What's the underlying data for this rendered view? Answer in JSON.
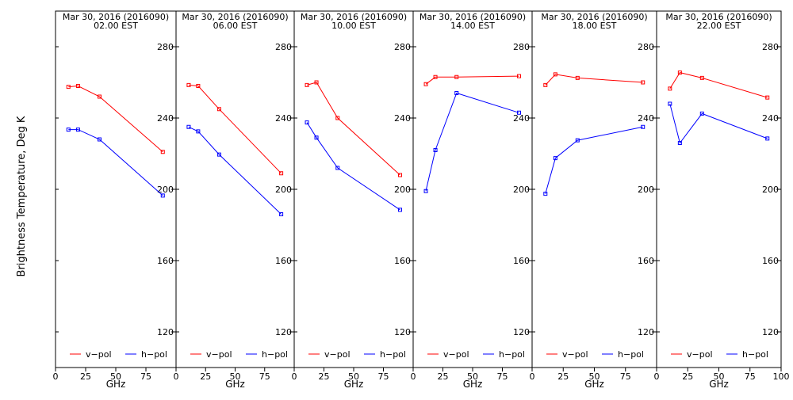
{
  "chart_data": {
    "type": "line",
    "ylabel": "Brightness Temperature, Deg K",
    "xlabel": "GHz",
    "xlim": [
      0,
      100
    ],
    "ylim": [
      100,
      295
    ],
    "x_ticks": [
      0,
      25,
      50,
      75,
      100
    ],
    "y_ticks": [
      120,
      160,
      200,
      240,
      280
    ],
    "legend": [
      {
        "label": "v−pol",
        "color": "#ff0000"
      },
      {
        "label": "h−pol",
        "color": "#0000ff"
      }
    ],
    "legend_position": "bottom",
    "colors": {
      "v_pol": "#ff0000",
      "h_pol": "#0000ff",
      "frame": "#000000"
    },
    "panels": [
      {
        "title_line1": "Mar 30, 2016 (2016090)",
        "title_line2": "02.00 EST",
        "x": [
          10.7,
          18.7,
          36.5,
          89
        ],
        "series": [
          {
            "name": "v−pol",
            "values": [
              257.5,
              258,
              252,
              221
            ]
          },
          {
            "name": "h−pol",
            "values": [
              233.5,
              233.5,
              228,
              196.5
            ]
          }
        ]
      },
      {
        "title_line1": "Mar 30, 2016 (2016090)",
        "title_line2": "06.00 EST",
        "x": [
          10.7,
          18.7,
          36.5,
          89
        ],
        "series": [
          {
            "name": "v−pol",
            "values": [
              258.5,
              258,
              245,
              209
            ]
          },
          {
            "name": "h−pol",
            "values": [
              235,
              232.5,
              219.5,
              186
            ]
          }
        ]
      },
      {
        "title_line1": "Mar 30, 2016 (2016090)",
        "title_line2": "10.00 EST",
        "x": [
          10.7,
          18.7,
          36.5,
          89
        ],
        "series": [
          {
            "name": "v−pol",
            "values": [
              258.5,
              260,
              240,
              208
            ]
          },
          {
            "name": "h−pol",
            "values": [
              237.5,
              229,
              212,
              188.5
            ]
          }
        ]
      },
      {
        "title_line1": "Mar 30, 2016 (2016090)",
        "title_line2": "14.00 EST",
        "x": [
          10.7,
          18.7,
          36.5,
          89
        ],
        "series": [
          {
            "name": "v−pol",
            "values": [
              259,
              263,
              263,
              263.5
            ]
          },
          {
            "name": "h−pol",
            "values": [
              199,
              222,
              254,
              243
            ]
          }
        ]
      },
      {
        "title_line1": "Mar 30, 2016 (2016090)",
        "title_line2": "18.00 EST",
        "x": [
          10.7,
          18.7,
          36.5,
          89
        ],
        "series": [
          {
            "name": "v−pol",
            "values": [
              258.5,
              264.5,
              262.5,
              260
            ]
          },
          {
            "name": "h−pol",
            "values": [
              197.5,
              217.5,
              227.5,
              235
            ]
          }
        ]
      },
      {
        "title_line1": "Mar 30, 2016 (2016090)",
        "title_line2": "22.00 EST",
        "x": [
          10.7,
          18.7,
          36.5,
          89
        ],
        "series": [
          {
            "name": "v−pol",
            "values": [
              256.5,
              265.5,
              262.5,
              251.5
            ]
          },
          {
            "name": "h−pol",
            "values": [
              248,
              226,
              242.5,
              228.5
            ]
          }
        ]
      }
    ]
  }
}
